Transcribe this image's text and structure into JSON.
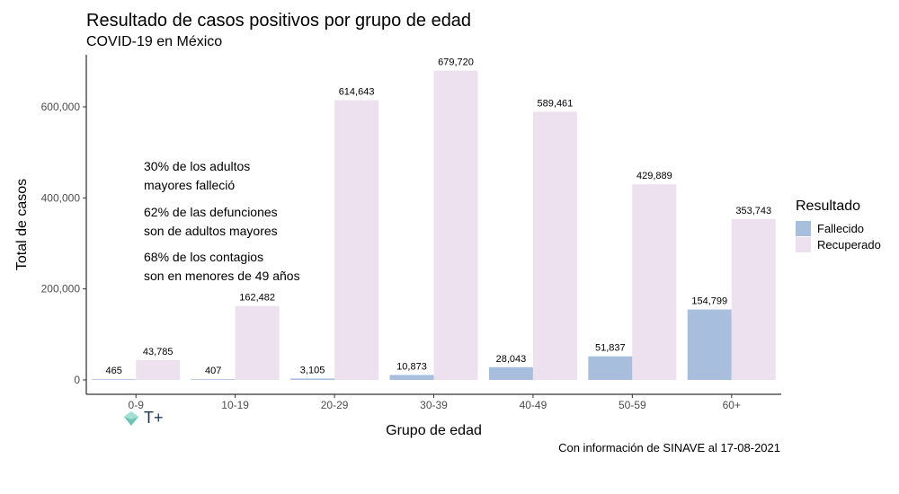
{
  "title": "Resultado de casos positivos por grupo de edad",
  "subtitle": "COVID-19 en México",
  "caption": "Con información de SINAVE al 17-08-2021",
  "annotations": [
    {
      "line1": "30% de los adultos",
      "line2": "mayores falleció"
    },
    {
      "line1": "62% de las defunciones",
      "line2": "son de adultos mayores"
    },
    {
      "line1": "68% de los contagios",
      "line2": "son en menores de 49 años"
    }
  ],
  "logo_text": "T+",
  "colors": {
    "fallecido": "#a8bedd",
    "recuperado": "#ede1ef"
  },
  "chart_data": {
    "type": "bar",
    "xlabel": "Grupo de edad",
    "ylabel": "Total de casos",
    "ylim": [
      0,
      700000
    ],
    "yticks": [
      0,
      200000,
      400000,
      600000
    ],
    "ytick_labels": [
      "0",
      "200,000",
      "400,000",
      "600,000"
    ],
    "categories": [
      "0-9",
      "10-19",
      "20-29",
      "30-39",
      "40-49",
      "50-59",
      "60+"
    ],
    "legend_title": "Resultado",
    "legend_position": "right",
    "grid": false,
    "series": [
      {
        "name": "Fallecido",
        "values": [
          465,
          407,
          3105,
          10873,
          28043,
          51837,
          154799
        ],
        "labels": [
          "465",
          "407",
          "3,105",
          "10,873",
          "28,043",
          "51,837",
          "154,799"
        ]
      },
      {
        "name": "Recuperado",
        "values": [
          43785,
          162482,
          614643,
          679720,
          589461,
          429889,
          353743
        ],
        "labels": [
          "43,785",
          "162,482",
          "614,643",
          "679,720",
          "589,461",
          "429,889",
          "353,743"
        ]
      }
    ]
  }
}
